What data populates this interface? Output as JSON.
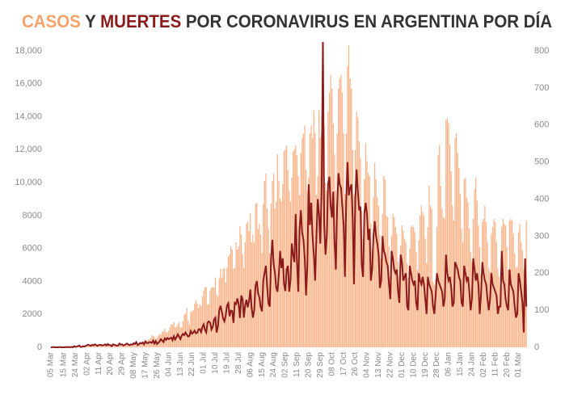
{
  "chart_data": {
    "type": "bar",
    "title_parts": [
      {
        "text": "CASOS",
        "color": "#f4a36b"
      },
      {
        "text": "Y",
        "color": "#333333"
      },
      {
        "text": "MUERTES",
        "color": "#8b1a1a"
      },
      {
        "text": "POR CORONAVIRUS EN ARGENTINA POR DÍA",
        "color": "#333333"
      }
    ],
    "categories": [
      "05 Mar",
      null,
      null,
      null,
      null,
      null,
      null,
      null,
      null,
      null,
      "15 Mar",
      null,
      null,
      null,
      null,
      null,
      null,
      null,
      null,
      "24 Mar",
      null,
      null,
      null,
      null,
      null,
      null,
      null,
      null,
      "02 Apr",
      null,
      null,
      null,
      null,
      null,
      null,
      null,
      null,
      "11 Apr",
      null,
      null,
      null,
      null,
      null,
      null,
      null,
      null,
      "20 Apr",
      null,
      null,
      null,
      null,
      null,
      null,
      null,
      null,
      "29 Apr",
      null,
      null,
      null,
      null,
      null,
      null,
      null,
      null,
      "08 May",
      null,
      null,
      null,
      null,
      null,
      null,
      null,
      null,
      "17 May",
      null,
      null,
      null,
      null,
      null,
      null,
      null,
      null,
      "26 May",
      null,
      null,
      null,
      null,
      null,
      null,
      null,
      null,
      "04 Jun",
      null,
      null,
      null,
      null,
      null,
      null,
      null,
      null,
      "13 Jun",
      null,
      null,
      null,
      null,
      null,
      null,
      null,
      null,
      "22 Jun",
      null,
      null,
      null,
      null,
      null,
      null,
      null,
      null,
      "01 Jul",
      null,
      null,
      null,
      null,
      null,
      null,
      null,
      null,
      "10 Jul",
      null,
      null,
      null,
      null,
      null,
      null,
      null,
      null,
      "19 Jul",
      null,
      null,
      null,
      null,
      null,
      null,
      null,
      null,
      "28 Jul",
      null,
      null,
      null,
      null,
      null,
      null,
      null,
      null,
      "06 Aug",
      null,
      null,
      null,
      null,
      null,
      null,
      null,
      null,
      "15 Aug",
      null,
      null,
      null,
      null,
      null,
      null,
      null,
      null,
      "24 Aug",
      null,
      null,
      null,
      null,
      null,
      null,
      null,
      null,
      "02 Sep",
      null,
      null,
      null,
      null,
      null,
      null,
      null,
      null,
      "11 Sep",
      null,
      null,
      null,
      null,
      null,
      null,
      null,
      null,
      "20 Sep",
      null,
      null,
      null,
      null,
      null,
      null,
      null,
      null,
      "29 Sep",
      null,
      null,
      null,
      null,
      null,
      null,
      null,
      null,
      "08 Oct",
      null,
      null,
      null,
      null,
      null,
      null,
      null,
      null,
      "17 Oct",
      null,
      null,
      null,
      null,
      null,
      null,
      null,
      null,
      "26 Oct",
      null,
      null,
      null,
      null,
      null,
      null,
      null,
      null,
      "04 Nov",
      null,
      null,
      null,
      null,
      null,
      null,
      null,
      null,
      "13 Nov",
      null,
      null,
      null,
      null,
      null,
      null,
      null,
      null,
      "22 Nov",
      null,
      null,
      null,
      null,
      null,
      null,
      null,
      null,
      "01 Dec",
      null,
      null,
      null,
      null,
      null,
      null,
      null,
      null,
      "10 Dec",
      null,
      null,
      null,
      null,
      null,
      null,
      null,
      null,
      "19 Dec",
      null,
      null,
      null,
      null,
      null,
      null,
      null,
      null,
      "28 Dec",
      null,
      null,
      null,
      null,
      null,
      null,
      null,
      null,
      "06 Jan",
      null,
      null,
      null,
      null,
      null,
      null,
      null,
      null,
      "15 Jan",
      null,
      null,
      null,
      null,
      null,
      null,
      null,
      null,
      "24 Jan",
      null,
      null,
      null,
      null,
      null,
      null,
      null,
      null,
      "02 Feb",
      null,
      null,
      null,
      null,
      null,
      null,
      null,
      null,
      "11 Feb",
      null,
      null,
      null,
      null,
      null,
      null,
      null,
      null,
      "20 Feb",
      null,
      null,
      null,
      null,
      null,
      null,
      null,
      null,
      "01 Mar",
      null,
      null,
      null,
      null,
      null,
      null
    ],
    "series": [
      {
        "mark": "bar",
        "color": "#f8b68c",
        "values": [
          1,
          1,
          2,
          2,
          4,
          5,
          2,
          3,
          12,
          3,
          11,
          10,
          9,
          31,
          30,
          56,
          41,
          35,
          21,
          81,
          96,
          115,
          86,
          101,
          55,
          88,
          87,
          67,
          79,
          90,
          132,
          98,
          105,
          66,
          89,
          117,
          103,
          127,
          87,
          167,
          89,
          68,
          85,
          111,
          143,
          114,
          103,
          89,
          111,
          102,
          165,
          136,
          163,
          108,
          103,
          93,
          99,
          141,
          144,
          135,
          145,
          157,
          108,
          159,
          177,
          225,
          145,
          171,
          183,
          240,
          264,
          297,
          339,
          258,
          392,
          486,
          476,
          564,
          718,
          702,
          648,
          509,
          625,
          722,
          795,
          804,
          949,
          983,
          1141,
          930,
          904,
          1002,
          1226,
          1393,
          1386,
          1531,
          1208,
          1232,
          1386,
          1531,
          1208,
          1232,
          1581,
          1958,
          2060,
          2401,
          1634,
          1374,
          2146,
          2189,
          2262,
          2635,
          2845,
          2667,
          2401,
          2606,
          2493,
          3099,
          3449,
          3663,
          3645,
          2590,
          2632,
          3449,
          3604,
          3663,
          3645,
          4250,
          3223,
          3099,
          4190,
          4769,
          4250,
          4757,
          4824,
          3937,
          4840,
          5493,
          5641,
          6134,
          5929,
          4757,
          4824,
          6377,
          5929,
          6127,
          7369,
          6842,
          5661,
          4824,
          6377,
          7498,
          7663,
          7043,
          8159,
          6365,
          6840,
          6352,
          8713,
          8771,
          7187,
          7498,
          6840,
          5717,
          8713,
          10104,
          10550,
          8431,
          7187,
          5704,
          8713,
          10104,
          10550,
          8431,
          8841,
          11717,
          10104,
          9056,
          8841,
          9908,
          11905,
          12027,
          12259,
          10778,
          9492,
          8841,
          10308,
          11905,
          12027,
          12259,
          11652,
          10394,
          9253,
          11807,
          12701,
          12982,
          13467,
          10778,
          9492,
          10308,
          12982,
          13477,
          12701,
          14392,
          13012,
          9253,
          10394,
          14392,
          12701,
          12982,
          14001,
          13477,
          10000,
          9524,
          14308,
          15454,
          16546,
          15718,
          13595,
          11712,
          9524,
          12982,
          15718,
          16325,
          16546,
          15454,
          13012,
          9308,
          12982,
          17096,
          18326,
          16325,
          15718,
          11968,
          9308,
          11968,
          14308,
          13981,
          12500,
          11500,
          8300,
          6600,
          10200,
          12400,
          11300,
          10600,
          10400,
          7500,
          6000,
          9100,
          11200,
          10200,
          9100,
          8600,
          6800,
          5400,
          8100,
          10400,
          10200,
          8000,
          7900,
          6100,
          4300,
          6800,
          8100,
          7900,
          7300,
          6900,
          5200,
          4300,
          6200,
          7400,
          7100,
          6600,
          6400,
          5100,
          4200,
          6000,
          7300,
          7400,
          7300,
          7000,
          5800,
          4700,
          6500,
          8000,
          8600,
          8200,
          8000,
          6600,
          5100,
          7300,
          9800,
          8600,
          8400,
          4000,
          3800,
          4100,
          7300,
          11700,
          12300,
          9800,
          8400,
          7900,
          7800,
          13800,
          13900,
          13600,
          12300,
          10700,
          8600,
          7700,
          12700,
          13000,
          11800,
          10900,
          9300,
          7200,
          6400,
          10200,
          10300,
          9100,
          8800,
          7200,
          5800,
          5200,
          7800,
          9600,
          10300,
          8900,
          7400,
          6100,
          4400,
          7600,
          7800,
          8600,
          7600,
          6400,
          4800,
          4600,
          6900,
          7300,
          7800,
          7600,
          6400,
          4800,
          4300,
          3600,
          7300,
          7800,
          7500,
          7400,
          6100,
          4700,
          7700,
          7800,
          7700,
          6900,
          5700,
          4800,
          4900,
          7000,
          7500,
          6400,
          5900,
          4700,
          5300,
          7700
        ]
      },
      {
        "mark": "line",
        "axis": "y2",
        "color": "#8b1a1a",
        "values": [
          0,
          0,
          1,
          0,
          0,
          0,
          0,
          1,
          0,
          0,
          0,
          0,
          1,
          0,
          1,
          0,
          1,
          0,
          3,
          1,
          2,
          3,
          5,
          1,
          1,
          3,
          2,
          4,
          6,
          7,
          5,
          4,
          7,
          5,
          8,
          6,
          4,
          6,
          7,
          6,
          5,
          6,
          8,
          5,
          9,
          6,
          6,
          3,
          8,
          7,
          6,
          4,
          5,
          10,
          7,
          8,
          5,
          6,
          9,
          10,
          7,
          6,
          8,
          7,
          11,
          9,
          14,
          6,
          8,
          12,
          10,
          13,
          8,
          16,
          12,
          11,
          14,
          14,
          12,
          18,
          10,
          17,
          9,
          12,
          16,
          22,
          18,
          14,
          24,
          20,
          25,
          22,
          24,
          26,
          19,
          30,
          21,
          27,
          35,
          29,
          22,
          31,
          36,
          33,
          40,
          34,
          29,
          31,
          44,
          37,
          40,
          45,
          38,
          39,
          48,
          49,
          41,
          55,
          62,
          47,
          40,
          67,
          70,
          66,
          48,
          55,
          75,
          80,
          40,
          57,
          100,
          112,
          96,
          78,
          70,
          86,
          113,
          119,
          84,
          99,
          98,
          66,
          120,
          117,
          132,
          116,
          79,
          140,
          130,
          80,
          113,
          128,
          108,
          125,
          156,
          106,
          80,
          100,
          166,
          179,
          146,
          135,
          108,
          97,
          180,
          201,
          220,
          164,
          118,
          110,
          240,
          290,
          225,
          200,
          160,
          150,
          198,
          260,
          214,
          240,
          170,
          152,
          210,
          220,
          150,
          180,
          280,
          250,
          230,
          360,
          230,
          150,
          320,
          370,
          310,
          290,
          240,
          140,
          220,
          440,
          330,
          390,
          300,
          250,
          180,
          300,
          400,
          360,
          280,
          420,
          824,
          330,
          250,
          300,
          440,
          460,
          380,
          350,
          420,
          280,
          210,
          380,
          470,
          440,
          430,
          380,
          330,
          190,
          400,
          500,
          410,
          430,
          440,
          350,
          170,
          400,
          480,
          420,
          370,
          380,
          220,
          190,
          360,
          390,
          360,
          290,
          320,
          180,
          210,
          300,
          340,
          300,
          280,
          250,
          160,
          180,
          300,
          260,
          250,
          230,
          220,
          170,
          130,
          260,
          240,
          210,
          200,
          210,
          150,
          120,
          250,
          230,
          180,
          190,
          200,
          110,
          100,
          220,
          200,
          180,
          170,
          180,
          120,
          100,
          200,
          180,
          170,
          190,
          170,
          130,
          90,
          190,
          170,
          160,
          150,
          110,
          90,
          140,
          200,
          180,
          170,
          160,
          150,
          110,
          130,
          250,
          200,
          180,
          190,
          160,
          110,
          120,
          230,
          220,
          210,
          190,
          180,
          120,
          110,
          220,
          200,
          180,
          190,
          150,
          100,
          130,
          240,
          210,
          180,
          200,
          170,
          90,
          140,
          230,
          200,
          180,
          170,
          130,
          100,
          130,
          200,
          170,
          160,
          150,
          140,
          90,
          110,
          110,
          260,
          180,
          170,
          130,
          110,
          100,
          210,
          170,
          160,
          150,
          110,
          80,
          90,
          200,
          180,
          150,
          120,
          40,
          240,
          110
        ]
      }
    ],
    "ylim": [
      0,
      18000
    ],
    "yticks": [
      0,
      2000,
      4000,
      6000,
      8000,
      {
        "value": 10000,
        "label": "10,000"
      },
      {
        "value": 12000,
        "label": "12,000"
      },
      {
        "value": 14000,
        "label": "14,000"
      },
      {
        "value": 16000,
        "label": "16,000"
      },
      {
        "value": 18000,
        "label": "18,000"
      }
    ],
    "y2lim": [
      0,
      800
    ],
    "y2ticks": [
      0,
      100,
      200,
      300,
      400,
      500,
      600,
      700,
      800
    ],
    "grid": false
  }
}
